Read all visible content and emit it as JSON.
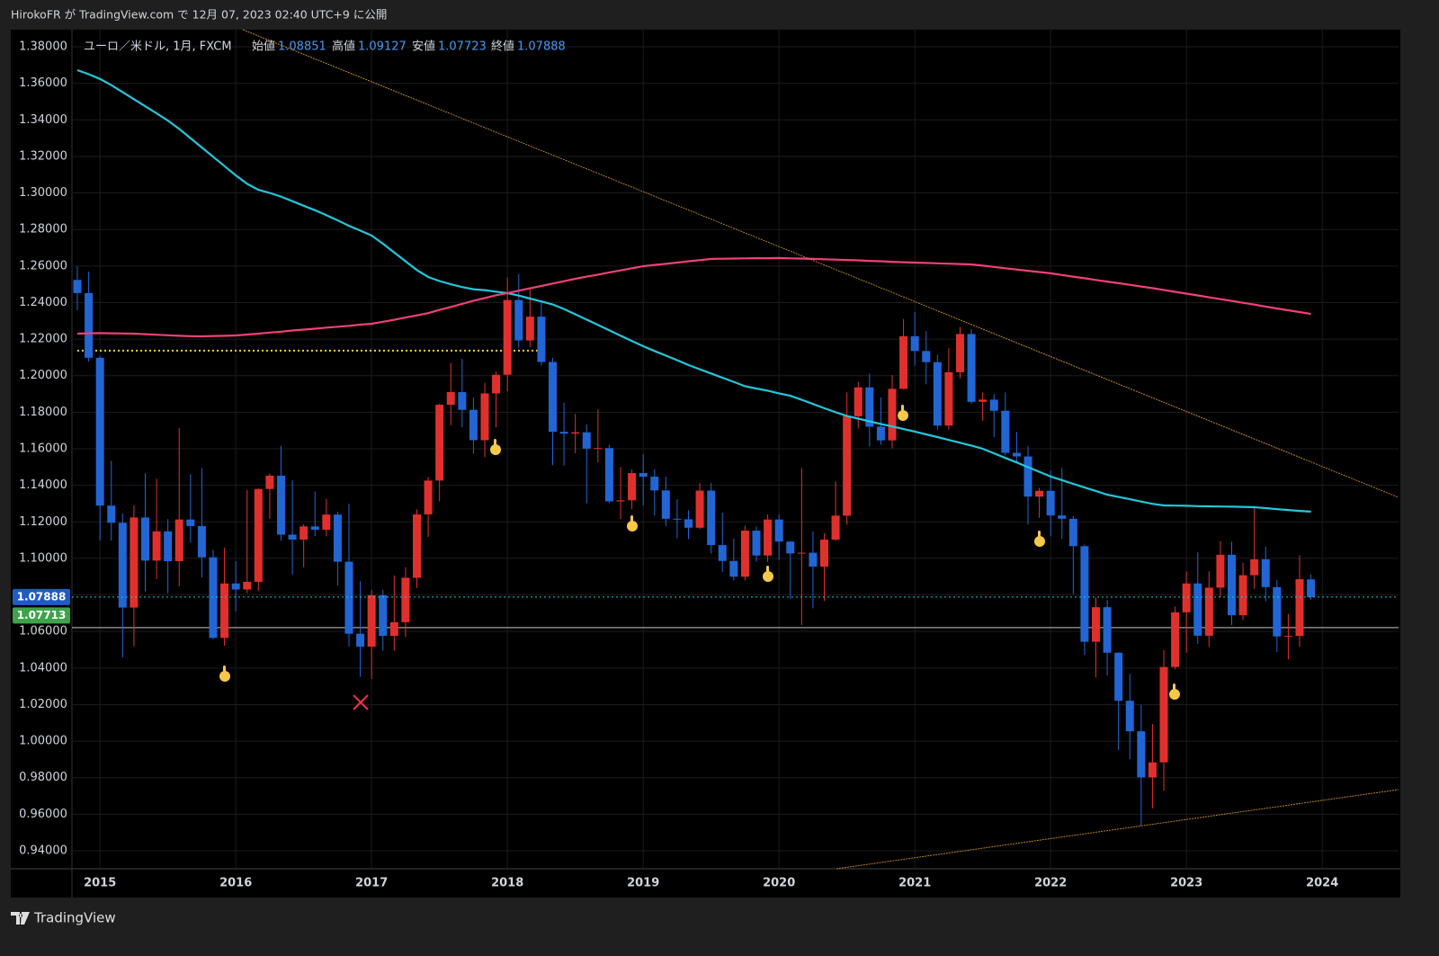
{
  "header": {
    "text": "HirokoFR が TradingView.com で 12月 07, 2023 02:40 UTC+9 に公開"
  },
  "footer": {
    "brand": "TradingView"
  },
  "chart_data": {
    "type": "candlestick",
    "symbol": "ユーロ／米ドル, 1月, FXCM",
    "ohlc_labels": [
      "始値",
      "高値",
      "安値",
      "終値"
    ],
    "up_color": "#e0302e",
    "down_color": "#2166d4",
    "categories": [
      null,
      null,
      "2015",
      null,
      null,
      null,
      null,
      null,
      null,
      null,
      null,
      null,
      null,
      null,
      "2016",
      null,
      null,
      null,
      null,
      null,
      null,
      null,
      null,
      null,
      null,
      null,
      "2017",
      null,
      null,
      null,
      null,
      null,
      null,
      null,
      null,
      null,
      null,
      null,
      "2018",
      null,
      null,
      null,
      null,
      null,
      null,
      null,
      null,
      null,
      null,
      null,
      "2019",
      null,
      null,
      null,
      null,
      null,
      null,
      null,
      null,
      null,
      null,
      null,
      "2020",
      null,
      null,
      null,
      null,
      null,
      null,
      null,
      null,
      null,
      null,
      null,
      "2021",
      null,
      null,
      null,
      null,
      null,
      null,
      null,
      null,
      null,
      null,
      null,
      "2022",
      null,
      null,
      null,
      null,
      null,
      null,
      null,
      null,
      null,
      null,
      null,
      "2023",
      null,
      null,
      null,
      null,
      null,
      null,
      null,
      null,
      null,
      null,
      null,
      "2024"
    ],
    "open": [
      1.2524,
      1.2452,
      1.2098,
      1.1289,
      1.1195,
      1.0731,
      1.1224,
      1.0988,
      1.1148,
      1.0985,
      1.1213,
      1.1177,
      1.1006,
      1.0565,
      1.0863,
      1.083,
      1.0872,
      1.138,
      1.1453,
      1.113,
      1.1103,
      1.1175,
      1.1157,
      1.124,
      1.0982,
      1.0588,
      1.0517,
      1.0798,
      1.0576,
      1.0651,
      1.0894,
      1.1241,
      1.1426,
      1.1841,
      1.191,
      1.1813,
      1.1647,
      1.1903,
      1.2005,
      1.2414,
      1.2193,
      1.2323,
      1.2075,
      1.1693,
      1.1683,
      1.169,
      1.1601,
      1.1604,
      1.1312,
      1.1318,
      1.1467,
      1.1447,
      1.1372,
      1.1217,
      1.1214,
      1.1168,
      1.1371,
      1.1073,
      1.0986,
      1.09,
      1.1152,
      1.1016,
      1.1213,
      1.1092,
      1.1027,
      1.1031,
      1.0955,
      1.1103,
      1.1234,
      1.1778,
      1.1936,
      1.1721,
      1.1646,
      1.1928,
      1.2216,
      1.2135,
      1.2074,
      1.1727,
      1.2019,
      1.2228,
      1.1857,
      1.1869,
      1.1808,
      1.1578,
      1.1558,
      1.1338,
      1.137,
      1.1235,
      1.1217,
      1.1067,
      1.0544,
      1.0733,
      1.0484,
      1.0221,
      1.0054,
      0.9802,
      0.9884,
      1.0406,
      1.0705,
      1.0863,
      1.0577,
      1.084,
      1.102,
      1.0689,
      1.0908,
      1.0995,
      1.0843,
      1.0573,
      1.0576,
      1.08851,
      null
    ],
    "high": [
      1.26,
      1.257,
      1.211,
      1.1534,
      1.1245,
      1.129,
      1.1466,
      1.1436,
      1.1215,
      1.1714,
      1.146,
      1.1495,
      1.1047,
      1.1059,
      1.0985,
      1.1376,
      1.1383,
      1.1464,
      1.1616,
      1.1427,
      1.1187,
      1.1366,
      1.1326,
      1.1255,
      1.1299,
      1.0875,
      1.0829,
      1.0829,
      1.0906,
      1.0951,
      1.1268,
      1.1445,
      1.1847,
      1.207,
      1.2092,
      1.188,
      1.1961,
      1.2023,
      1.2537,
      1.2556,
      1.2476,
      1.2414,
      1.2097,
      1.1852,
      1.1791,
      1.1734,
      1.1815,
      1.1621,
      1.15,
      1.1486,
      1.157,
      1.1489,
      1.1448,
      1.1324,
      1.1264,
      1.1412,
      1.1412,
      1.125,
      1.1109,
      1.1179,
      1.1175,
      1.124,
      1.1239,
      1.1095,
      1.1495,
      1.1147,
      1.1136,
      1.1422,
      1.1909,
      1.1966,
      1.2011,
      1.1881,
      1.2003,
      1.231,
      1.2349,
      1.2243,
      1.2114,
      1.215,
      1.2266,
      1.2255,
      1.1908,
      1.19,
      1.1909,
      1.1692,
      1.1616,
      1.1386,
      1.1482,
      1.1495,
      1.1233,
      1.1076,
      1.0787,
      1.0773,
      1.0486,
      1.0368,
      1.0198,
      1.0094,
      1.0497,
      1.0736,
      1.0929,
      1.1033,
      1.093,
      1.1095,
      1.1092,
      1.0976,
      1.1276,
      1.1065,
      1.0882,
      1.0695,
      1.1017,
      1.09127,
      null
    ],
    "low": [
      1.2358,
      1.2077,
      1.1098,
      1.1098,
      1.0458,
      1.052,
      1.0819,
      1.0888,
      1.0809,
      1.0847,
      1.1087,
      1.0896,
      1.0557,
      1.0522,
      1.071,
      1.081,
      1.0822,
      1.1217,
      1.1097,
      1.0912,
      1.0952,
      1.1122,
      1.1121,
      1.0852,
      1.0518,
      1.0352,
      1.034,
      1.0494,
      1.0494,
      1.057,
      1.0839,
      1.1118,
      1.1312,
      1.1729,
      1.1717,
      1.1574,
      1.1554,
      1.1717,
      1.1915,
      1.2152,
      1.2155,
      1.2055,
      1.151,
      1.1508,
      1.1575,
      1.1301,
      1.1526,
      1.1302,
      1.1215,
      1.1269,
      1.1289,
      1.1234,
      1.1176,
      1.111,
      1.1106,
      1.116,
      1.1027,
      1.0926,
      1.0879,
      1.0879,
      1.0981,
      1.0981,
      1.0992,
      1.0778,
      1.0636,
      1.0727,
      1.0767,
      1.1095,
      1.1185,
      1.1711,
      1.1612,
      1.1622,
      1.1603,
      1.1925,
      1.2055,
      1.1953,
      1.1704,
      1.1704,
      1.1986,
      1.1846,
      1.1752,
      1.1664,
      1.1563,
      1.1524,
      1.1186,
      1.1222,
      1.1121,
      1.1106,
      1.0805,
      1.0471,
      1.0349,
      1.0359,
      0.9952,
      0.9901,
      0.9536,
      0.9633,
      0.973,
      1.0393,
      1.0483,
      1.0533,
      1.0516,
      1.0788,
      1.0635,
      1.0662,
      1.0834,
      1.0766,
      1.0488,
      1.0448,
      1.0517,
      1.07723,
      null
    ],
    "close": [
      1.2452,
      1.2098,
      1.1289,
      1.1195,
      1.0731,
      1.1224,
      1.0988,
      1.1148,
      1.0985,
      1.1213,
      1.1177,
      1.1006,
      1.0565,
      1.0863,
      1.083,
      1.0872,
      1.138,
      1.1453,
      1.113,
      1.1103,
      1.1175,
      1.1157,
      1.124,
      1.0982,
      1.0588,
      1.0517,
      1.0798,
      1.0576,
      1.0651,
      1.0894,
      1.1241,
      1.1426,
      1.1841,
      1.191,
      1.1813,
      1.1647,
      1.1903,
      1.2005,
      1.2414,
      1.2193,
      1.2323,
      1.2075,
      1.1693,
      1.1683,
      1.169,
      1.1601,
      1.1604,
      1.1312,
      1.1318,
      1.1467,
      1.1447,
      1.1372,
      1.1217,
      1.1214,
      1.1168,
      1.1371,
      1.1073,
      1.0986,
      1.09,
      1.1152,
      1.1016,
      1.1213,
      1.1092,
      1.1027,
      1.1031,
      1.0955,
      1.1103,
      1.1234,
      1.1778,
      1.1936,
      1.1721,
      1.1646,
      1.1928,
      1.2216,
      1.2135,
      1.2074,
      1.1727,
      1.2019,
      1.2228,
      1.1857,
      1.1869,
      1.1808,
      1.1578,
      1.1558,
      1.1338,
      1.137,
      1.1235,
      1.1217,
      1.1067,
      1.0544,
      1.0733,
      1.0484,
      1.0221,
      1.0054,
      0.9802,
      0.9884,
      1.0406,
      1.0705,
      1.0863,
      1.0577,
      1.084,
      1.102,
      1.0689,
      1.0908,
      1.0995,
      1.0843,
      1.0573,
      1.0576,
      1.0886,
      1.07888,
      null
    ],
    "lines": [
      {
        "color": "#26c6da",
        "values": [
          1.3672,
          1.365,
          1.3624,
          1.359,
          1.3552,
          1.3513,
          1.3474,
          1.3436,
          1.3396,
          1.335,
          1.33,
          1.3249,
          1.3198,
          1.3147,
          1.3096,
          1.305,
          1.3017,
          1.3,
          1.298,
          1.2955,
          1.293,
          1.2905,
          1.2878,
          1.285,
          1.282,
          1.2794,
          1.2767,
          1.2722,
          1.2674,
          1.2626,
          1.2578,
          1.254,
          1.2518,
          1.25,
          1.2485,
          1.2473,
          1.2468,
          1.246,
          1.2452,
          1.2438,
          1.2422,
          1.2406,
          1.239,
          1.2365,
          1.2336,
          1.2307,
          1.2278,
          1.2248,
          1.2219,
          1.219,
          1.2161,
          1.2135,
          1.211,
          1.2085,
          1.2058,
          1.2035,
          1.2012,
          1.1989,
          1.1966,
          1.1942,
          1.193,
          1.1918,
          1.1903,
          1.189,
          1.1868,
          1.1845,
          1.1822,
          1.18,
          1.1779,
          1.1765,
          1.175,
          1.1736,
          1.1722,
          1.1708,
          1.1694,
          1.1679,
          1.1664,
          1.1648,
          1.1633,
          1.1617,
          1.16,
          1.1575,
          1.155,
          1.1525,
          1.1499,
          1.1474,
          1.1448,
          1.1428,
          1.1408,
          1.1388,
          1.1369,
          1.1349,
          1.1336,
          1.1324,
          1.1311,
          1.1299,
          1.129,
          1.1289,
          1.1288,
          1.1286,
          1.1285,
          1.1284,
          1.1283,
          1.1282,
          1.128,
          1.1275,
          1.127,
          1.1265,
          1.126,
          1.1256,
          null
        ]
      },
      {
        "color": "#f0407a",
        "values": [
          1.223,
          1.2232,
          1.2233,
          1.2232,
          1.2231,
          1.223,
          1.2227,
          1.2224,
          1.2221,
          1.2218,
          1.2216,
          1.2215,
          1.2217,
          1.2218,
          1.222,
          1.2225,
          1.223,
          1.2236,
          1.2241,
          1.2247,
          1.2252,
          1.2257,
          1.2263,
          1.2268,
          1.2273,
          1.2279,
          1.2284,
          1.2295,
          1.2306,
          1.2318,
          1.233,
          1.2342,
          1.236,
          1.2376,
          1.2393,
          1.241,
          1.2425,
          1.244,
          1.2452,
          1.2465,
          1.2478,
          1.2491,
          1.2504,
          1.2517,
          1.253,
          1.2542,
          1.2553,
          1.2565,
          1.2576,
          1.2588,
          1.2599,
          1.2606,
          1.2612,
          1.2619,
          1.2626,
          1.2632,
          1.2639,
          1.264,
          1.2641,
          1.2642,
          1.2643,
          1.2643,
          1.2644,
          1.2642,
          1.2641,
          1.2639,
          1.2637,
          1.2635,
          1.2633,
          1.2631,
          1.2628,
          1.2626,
          1.2623,
          1.2621,
          1.2619,
          1.2617,
          1.2615,
          1.2613,
          1.2611,
          1.2609,
          1.2602,
          1.2595,
          1.2588,
          1.2581,
          1.2574,
          1.2567,
          1.256,
          1.2551,
          1.2542,
          1.2533,
          1.2524,
          1.2515,
          1.2506,
          1.2497,
          1.2488,
          1.2479,
          1.2469,
          1.2459,
          1.2449,
          1.2439,
          1.2429,
          1.2419,
          1.2409,
          1.2399,
          1.2389,
          1.2378,
          1.2368,
          1.2358,
          1.2348,
          1.2338,
          null
        ]
      }
    ],
    "price_tag": 1.07713,
    "hlines": [
      {
        "value": 1.0621,
        "color": "#c8c8c8"
      },
      {
        "value": 1.2137,
        "color": "#f5d23c"
      }
    ],
    "ylim": [
      0.93016,
      1.38935
    ],
    "yticks": [
      {
        "value": 0.94,
        "label": "0.94000"
      },
      {
        "value": 0.96,
        "label": "0.96000"
      },
      {
        "value": 0.98,
        "label": "0.98000"
      },
      {
        "value": 1.0,
        "label": "1.00000"
      },
      {
        "value": 1.02,
        "label": "1.02000"
      },
      {
        "value": 1.04,
        "label": "1.04000"
      },
      {
        "value": 1.06,
        "label": "1.06000"
      },
      {
        "value": 1.08,
        "label": "1.08000"
      },
      {
        "value": 1.1,
        "label": "1.10000"
      },
      {
        "value": 1.12,
        "label": "1.12000"
      },
      {
        "value": 1.14,
        "label": "1.14000"
      },
      {
        "value": 1.16,
        "label": "1.16000"
      },
      {
        "value": 1.18,
        "label": "1.18000"
      },
      {
        "value": 1.2,
        "label": "1.20000"
      },
      {
        "value": 1.22,
        "label": "1.22000"
      },
      {
        "value": 1.24,
        "label": "1.24000"
      },
      {
        "value": 1.26,
        "label": "1.26000"
      },
      {
        "value": 1.28,
        "label": "1.28000"
      },
      {
        "value": 1.3,
        "label": "1.30000"
      },
      {
        "value": 1.32,
        "label": "1.32000"
      },
      {
        "value": 1.34,
        "label": "1.34000"
      },
      {
        "value": 1.36,
        "label": "1.36000"
      },
      {
        "value": 1.38,
        "label": "1.38000"
      }
    ],
    "grid": true
  }
}
